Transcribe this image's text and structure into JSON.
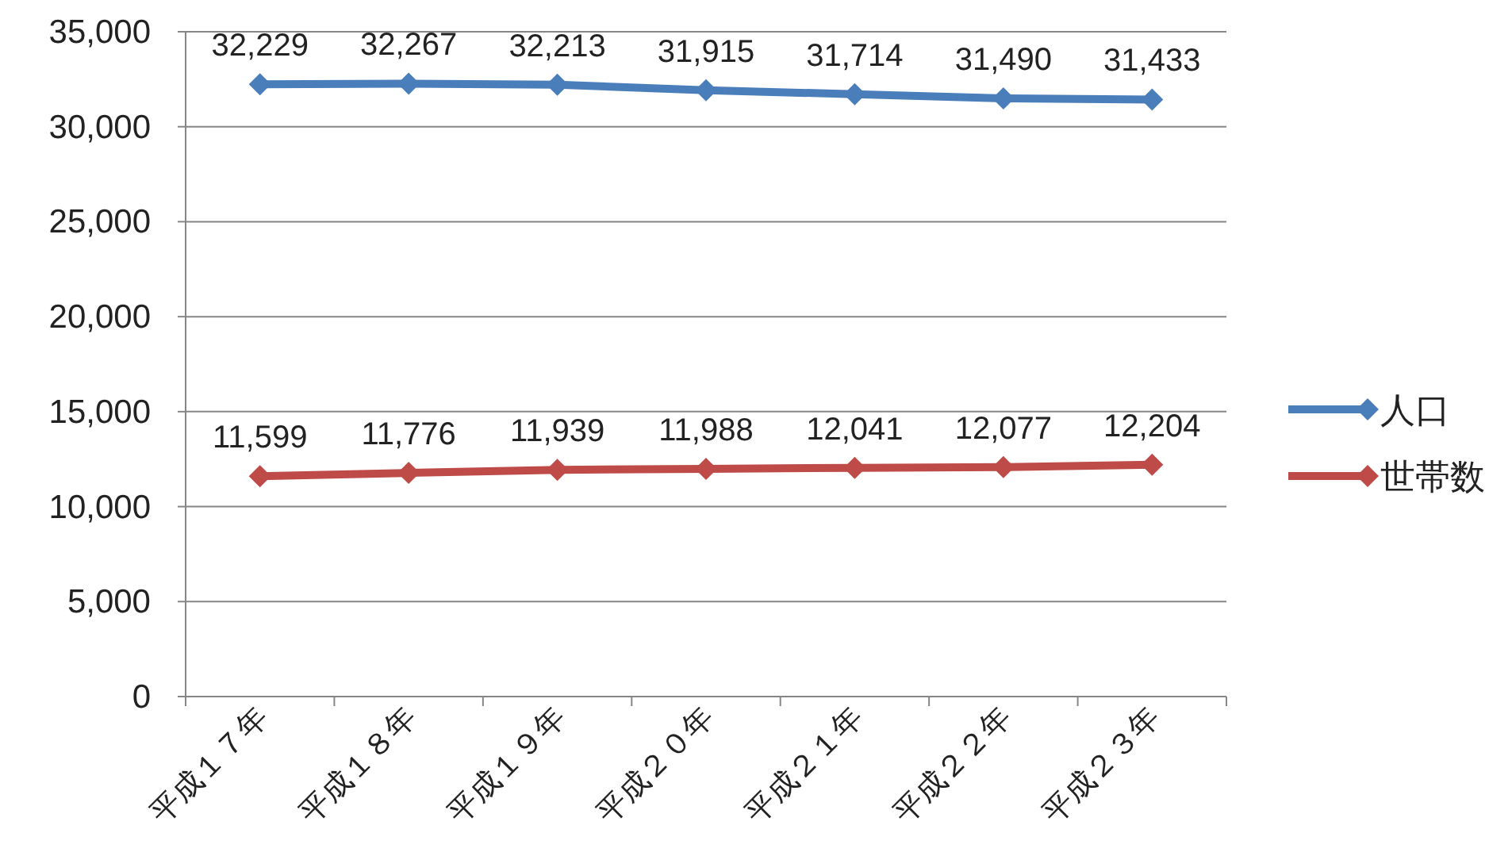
{
  "chart_data": {
    "type": "line",
    "categories": [
      "平成１７年",
      "平成１８年",
      "平成１９年",
      "平成２０年",
      "平成２１年",
      "平成２２年",
      "平成２３年"
    ],
    "series": [
      {
        "name": "人口",
        "color": "#4a7ebb",
        "values": [
          32229,
          32267,
          32213,
          31915,
          31714,
          31490,
          31433
        ],
        "value_labels": [
          "32,229",
          "32,267",
          "32,213",
          "31,915",
          "31,714",
          "31,490",
          "31,433"
        ]
      },
      {
        "name": "世帯数",
        "color": "#be4b48",
        "values": [
          11599,
          11776,
          11939,
          11988,
          12041,
          12077,
          12204
        ],
        "value_labels": [
          "11,599",
          "11,776",
          "11,939",
          "11,988",
          "12,041",
          "12,077",
          "12,204"
        ]
      }
    ],
    "ylim": [
      0,
      35000
    ],
    "yticks": [
      {
        "value": 0,
        "label": "0"
      },
      {
        "value": 5000,
        "label": "5,000"
      },
      {
        "value": 10000,
        "label": "10,000"
      },
      {
        "value": 15000,
        "label": "15,000"
      },
      {
        "value": 20000,
        "label": "20,000"
      },
      {
        "value": 25000,
        "label": "25,000"
      },
      {
        "value": 30000,
        "label": "30,000"
      },
      {
        "value": 35000,
        "label": "35,000"
      }
    ],
    "grid": "y",
    "legend": "right",
    "marker": "diamond",
    "line_style": "solid"
  }
}
